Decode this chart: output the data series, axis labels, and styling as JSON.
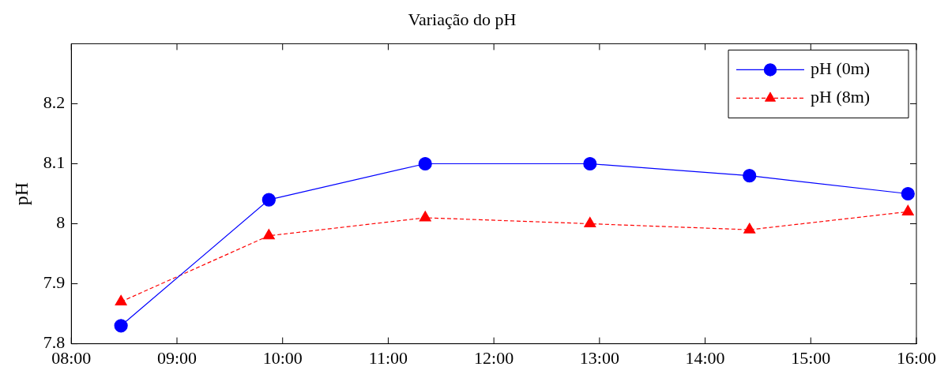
{
  "chart_data": {
    "type": "line",
    "title": "Variação do pH",
    "ylabel": "pH",
    "x": [
      8.47,
      9.87,
      11.35,
      12.91,
      14.42,
      15.92
    ],
    "series": [
      {
        "name": "pH (0m)",
        "color": "#0000ff",
        "values": [
          7.83,
          8.04,
          8.1,
          8.1,
          8.08,
          8.05
        ],
        "marker": "circle",
        "line_style": "solid"
      },
      {
        "name": "pH (8m)",
        "color": "#ff0000",
        "values": [
          7.87,
          7.98,
          8.01,
          8.0,
          7.99,
          8.02
        ],
        "marker": "triangle",
        "line_style": "dashed"
      }
    ],
    "xlim": [
      8,
      16
    ],
    "xticks": [
      {
        "value": 8,
        "label": "08:00"
      },
      {
        "value": 9,
        "label": "09:00"
      },
      {
        "value": 10,
        "label": "10:00"
      },
      {
        "value": 11,
        "label": "11:00"
      },
      {
        "value": 12,
        "label": "12:00"
      },
      {
        "value": 13,
        "label": "13:00"
      },
      {
        "value": 14,
        "label": "14:00"
      },
      {
        "value": 15,
        "label": "15:00"
      },
      {
        "value": 16,
        "label": "16:00"
      }
    ],
    "ylim": [
      7.8,
      8.3
    ],
    "yticks": [
      7.8,
      7.9,
      8,
      8.1,
      8.2
    ],
    "grid": false,
    "legend": "top right"
  }
}
